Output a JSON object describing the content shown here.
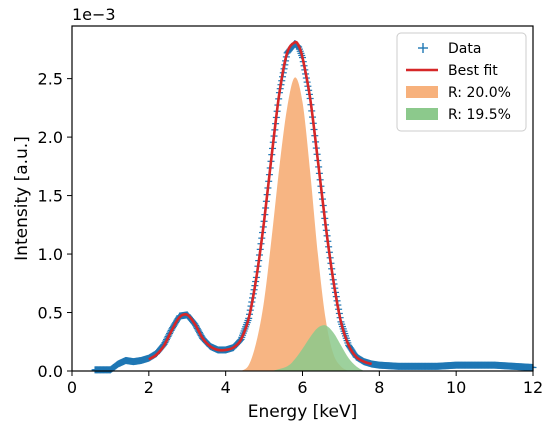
{
  "chart_data": {
    "type": "line",
    "title": "",
    "xlabel": "Energy [keV]",
    "ylabel": "Intensity [a.u.]",
    "y_offset_label": "1e−3",
    "xlim": [
      0,
      12
    ],
    "ylim": [
      0,
      2.95
    ],
    "x_ticks": [
      0,
      2,
      4,
      6,
      8,
      10,
      12
    ],
    "y_ticks": [
      0.0,
      0.5,
      1.0,
      1.5,
      2.0,
      2.5
    ],
    "grid": false,
    "legend_position": "top-right",
    "colors": {
      "data": "#1f77b4",
      "fit": "#d62728",
      "peak_r1": "#f7b17c",
      "peak_r2": "#8cc98c"
    },
    "series": [
      {
        "name": "Data",
        "kind": "markers",
        "marker": "+",
        "x": [
          0.6,
          0.8,
          1.0,
          1.2,
          1.4,
          1.6,
          1.8,
          2.0,
          2.2,
          2.4,
          2.6,
          2.8,
          3.0,
          3.2,
          3.4,
          3.6,
          3.8,
          4.0,
          4.2,
          4.4,
          4.6,
          4.8,
          5.0,
          5.2,
          5.4,
          5.6,
          5.8,
          5.9,
          6.0,
          6.2,
          6.4,
          6.6,
          6.8,
          7.0,
          7.2,
          7.4,
          7.6,
          7.8,
          8.0,
          8.5,
          9.0,
          9.5,
          10.0,
          10.5,
          11.0,
          11.5,
          12.0
        ],
        "y": [
          0.01,
          0.01,
          0.01,
          0.06,
          0.09,
          0.08,
          0.09,
          0.11,
          0.15,
          0.23,
          0.36,
          0.47,
          0.48,
          0.4,
          0.28,
          0.21,
          0.18,
          0.18,
          0.2,
          0.27,
          0.45,
          0.8,
          1.28,
          1.85,
          2.38,
          2.72,
          2.8,
          2.77,
          2.68,
          2.33,
          1.8,
          1.25,
          0.78,
          0.42,
          0.22,
          0.12,
          0.08,
          0.06,
          0.05,
          0.04,
          0.04,
          0.04,
          0.05,
          0.05,
          0.05,
          0.04,
          0.03
        ]
      },
      {
        "name": "Best fit",
        "kind": "line",
        "x": [
          2.0,
          2.2,
          2.4,
          2.6,
          2.8,
          3.0,
          3.2,
          3.4,
          3.6,
          3.8,
          4.0,
          4.2,
          4.4,
          4.6,
          4.8,
          5.0,
          5.2,
          5.4,
          5.6,
          5.8,
          5.9,
          6.0,
          6.2,
          6.4,
          6.6,
          6.8,
          7.0,
          7.2,
          7.4,
          7.6,
          7.8
        ],
        "y": [
          0.1,
          0.14,
          0.22,
          0.35,
          0.46,
          0.48,
          0.4,
          0.28,
          0.21,
          0.18,
          0.18,
          0.2,
          0.27,
          0.45,
          0.8,
          1.28,
          1.85,
          2.38,
          2.72,
          2.81,
          2.78,
          2.68,
          2.33,
          1.8,
          1.25,
          0.78,
          0.42,
          0.22,
          0.12,
          0.08,
          0.06
        ]
      },
      {
        "name": "R: 20.0%",
        "kind": "area",
        "x": [
          4.4,
          4.6,
          4.8,
          5.0,
          5.2,
          5.4,
          5.6,
          5.8,
          6.0,
          6.2,
          6.4,
          6.6,
          6.8,
          7.0,
          7.2
        ],
        "y": [
          0.0,
          0.05,
          0.25,
          0.6,
          1.15,
          1.75,
          2.25,
          2.51,
          2.3,
          1.7,
          1.0,
          0.45,
          0.15,
          0.04,
          0.0
        ]
      },
      {
        "name": "R: 19.5%",
        "kind": "area",
        "x": [
          5.2,
          5.6,
          5.8,
          6.0,
          6.2,
          6.4,
          6.6,
          6.8,
          7.0,
          7.2,
          7.4,
          7.6
        ],
        "y": [
          0.0,
          0.04,
          0.1,
          0.19,
          0.29,
          0.37,
          0.39,
          0.33,
          0.22,
          0.11,
          0.04,
          0.0
        ]
      }
    ]
  }
}
